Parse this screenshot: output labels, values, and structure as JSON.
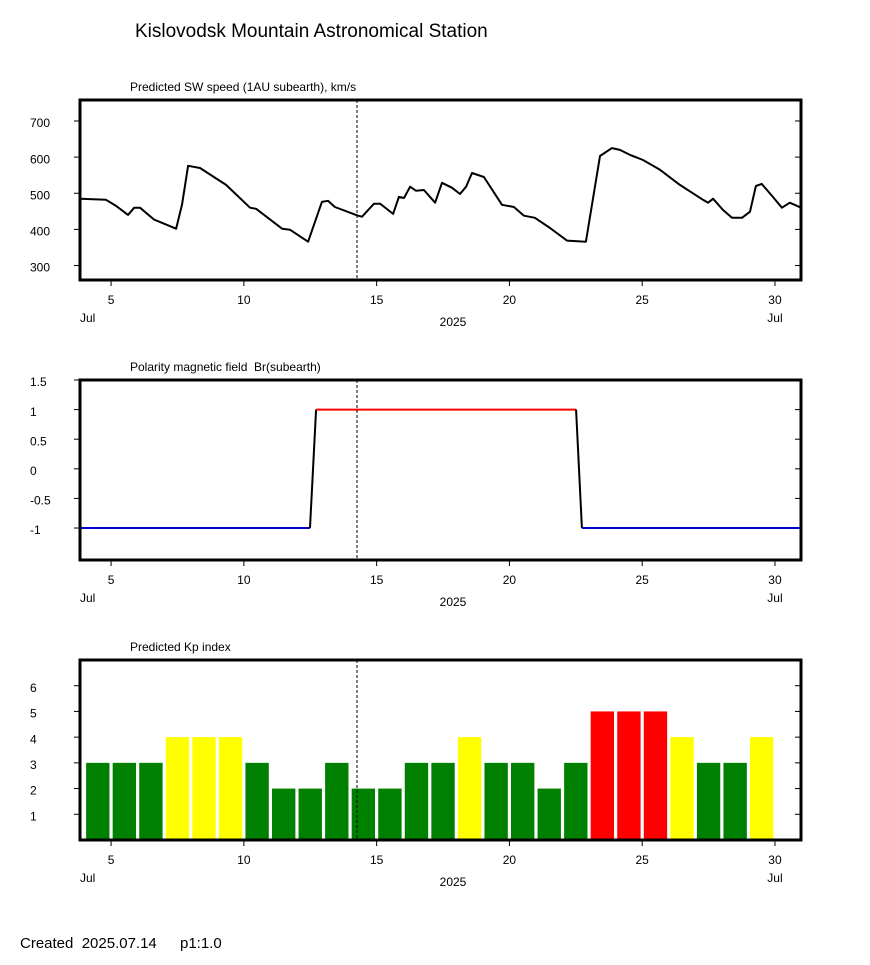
{
  "title": "Kislovodsk Mountain Astronomical Station",
  "footer": {
    "created": "Created  2025.07.14",
    "page": "p1:1.0"
  },
  "chart_data": [
    {
      "type": "line",
      "title": "Predicted SW speed (1AU subearth), km/s",
      "color": "#000000",
      "x": [
        3.83,
        4.81,
        5.19,
        5.64,
        5.87,
        6.09,
        6.62,
        7.45,
        7.67,
        7.9,
        8.35,
        9.33,
        10.23,
        10.46,
        11.44,
        11.74,
        12.42,
        12.94,
        13.17,
        13.43,
        14.3,
        14.45,
        14.9,
        15.13,
        15.62,
        15.84,
        16.03,
        16.26,
        16.48,
        16.78,
        17.2,
        17.46,
        17.84,
        18.14,
        18.37,
        18.59,
        19.04,
        19.72,
        20.17,
        20.55,
        20.96,
        21.53,
        22.17,
        22.88,
        23.41,
        23.86,
        24.16,
        24.54,
        25.03,
        25.67,
        26.42,
        27.29,
        27.48,
        27.67,
        28.04,
        28.38,
        28.76,
        29.06,
        29.28,
        29.5,
        29.92,
        30.26,
        30.56,
        30.98
      ],
      "values": [
        485,
        482,
        465,
        440,
        460,
        460,
        427,
        402,
        468,
        576,
        570,
        523,
        460,
        457,
        402,
        399,
        366,
        476,
        479,
        462,
        438,
        435,
        471,
        471,
        443,
        490,
        487,
        518,
        507,
        509,
        474,
        529,
        515,
        498,
        518,
        556,
        545,
        468,
        462,
        438,
        432,
        404,
        369,
        366,
        603,
        625,
        620,
        606,
        592,
        565,
        523,
        482,
        474,
        485,
        454,
        432,
        432,
        449,
        520,
        526,
        490,
        460,
        474,
        460
      ],
      "xlim": [
        3.83,
        30.98
      ],
      "xticks": [
        5,
        10,
        15,
        20,
        25,
        30
      ],
      "x_month": "Jul",
      "x_year": "2025",
      "ylim": [
        260,
        758
      ],
      "yticks": [
        300,
        400,
        500,
        600,
        700
      ],
      "marker_x": 14.26
    },
    {
      "type": "line",
      "title": "Polarity magnetic field  Br(subearth)",
      "colors": {
        "positive": "#ff0000",
        "negative": "#0000cc",
        "transition": "#000000"
      },
      "x": [
        3.83,
        12.49,
        12.72,
        22.51,
        22.73,
        30.98
      ],
      "values": [
        -1,
        -1,
        1,
        1,
        -1,
        -1
      ],
      "xlim": [
        3.83,
        30.98
      ],
      "xticks": [
        5,
        10,
        15,
        20,
        25,
        30
      ],
      "x_month": "Jul",
      "x_year": "2025",
      "ylim": [
        -1.54,
        1.5
      ],
      "yticks": [
        -1,
        -0.5,
        0,
        0.5,
        1,
        1.5
      ],
      "marker_x": 14.26
    },
    {
      "type": "bar",
      "title": "Predicted Kp index",
      "x": [
        4.5,
        5.5,
        6.5,
        7.5,
        8.5,
        9.5,
        10.5,
        11.5,
        12.5,
        13.5,
        14.5,
        15.5,
        16.5,
        17.5,
        18.5,
        19.5,
        20.5,
        21.5,
        22.5,
        23.5,
        24.5,
        25.5,
        26.5,
        27.5,
        28.5,
        29.5
      ],
      "values": [
        3,
        3,
        3,
        4,
        4,
        4,
        3,
        2,
        2,
        3,
        2,
        2,
        3,
        3,
        4,
        3,
        3,
        2,
        3,
        5,
        5,
        5,
        4,
        3,
        3,
        4
      ],
      "colors": [
        "#008000",
        "#008000",
        "#008000",
        "#ffff00",
        "#ffff00",
        "#ffff00",
        "#008000",
        "#008000",
        "#008000",
        "#008000",
        "#008000",
        "#008000",
        "#008000",
        "#008000",
        "#ffff00",
        "#008000",
        "#008000",
        "#008000",
        "#008000",
        "#ff0000",
        "#ff0000",
        "#ff0000",
        "#ffff00",
        "#008000",
        "#008000",
        "#ffff00"
      ],
      "xlim": [
        3.83,
        30.98
      ],
      "xticks": [
        5,
        10,
        15,
        20,
        25,
        30
      ],
      "x_month": "Jul",
      "x_year": "2025",
      "ylim": [
        0,
        7
      ],
      "yticks": [
        1,
        2,
        3,
        4,
        5,
        6
      ],
      "marker_x": 14.26
    }
  ]
}
